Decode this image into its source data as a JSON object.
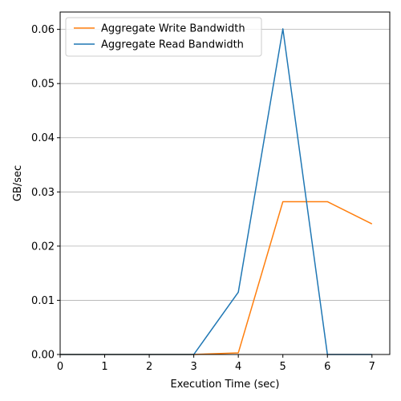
{
  "chart_data": {
    "type": "line",
    "title": "",
    "xlabel": "Execution Time (sec)",
    "ylabel": "GB/sec",
    "xlim": [
      0,
      7.4
    ],
    "ylim": [
      0,
      0.0632
    ],
    "x_ticks": [
      0,
      1,
      2,
      3,
      4,
      5,
      6,
      7
    ],
    "x_tick_labels": [
      "0",
      "1",
      "2",
      "3",
      "4",
      "5",
      "6",
      "7"
    ],
    "y_ticks": [
      0,
      0.01,
      0.02,
      0.03,
      0.04,
      0.05,
      0.06
    ],
    "y_tick_labels": [
      "0.00",
      "0.01",
      "0.02",
      "0.03",
      "0.04",
      "0.05",
      "0.06"
    ],
    "grid": "y-major",
    "legend_position": "top-left",
    "series": [
      {
        "name": "Aggregate Write Bandwidth",
        "color": "#ff7f0e",
        "x": [
          0,
          1,
          2,
          3,
          4,
          5,
          6,
          7
        ],
        "y": [
          0,
          0,
          0,
          0,
          0.0003,
          0.0282,
          0.0282,
          0.0241
        ]
      },
      {
        "name": "Aggregate Read Bandwidth",
        "color": "#1f77b4",
        "x": [
          0,
          1,
          2,
          3,
          4,
          5,
          6,
          7
        ],
        "y": [
          0,
          0,
          0,
          0,
          0.0115,
          0.0601,
          0,
          0
        ]
      }
    ]
  }
}
